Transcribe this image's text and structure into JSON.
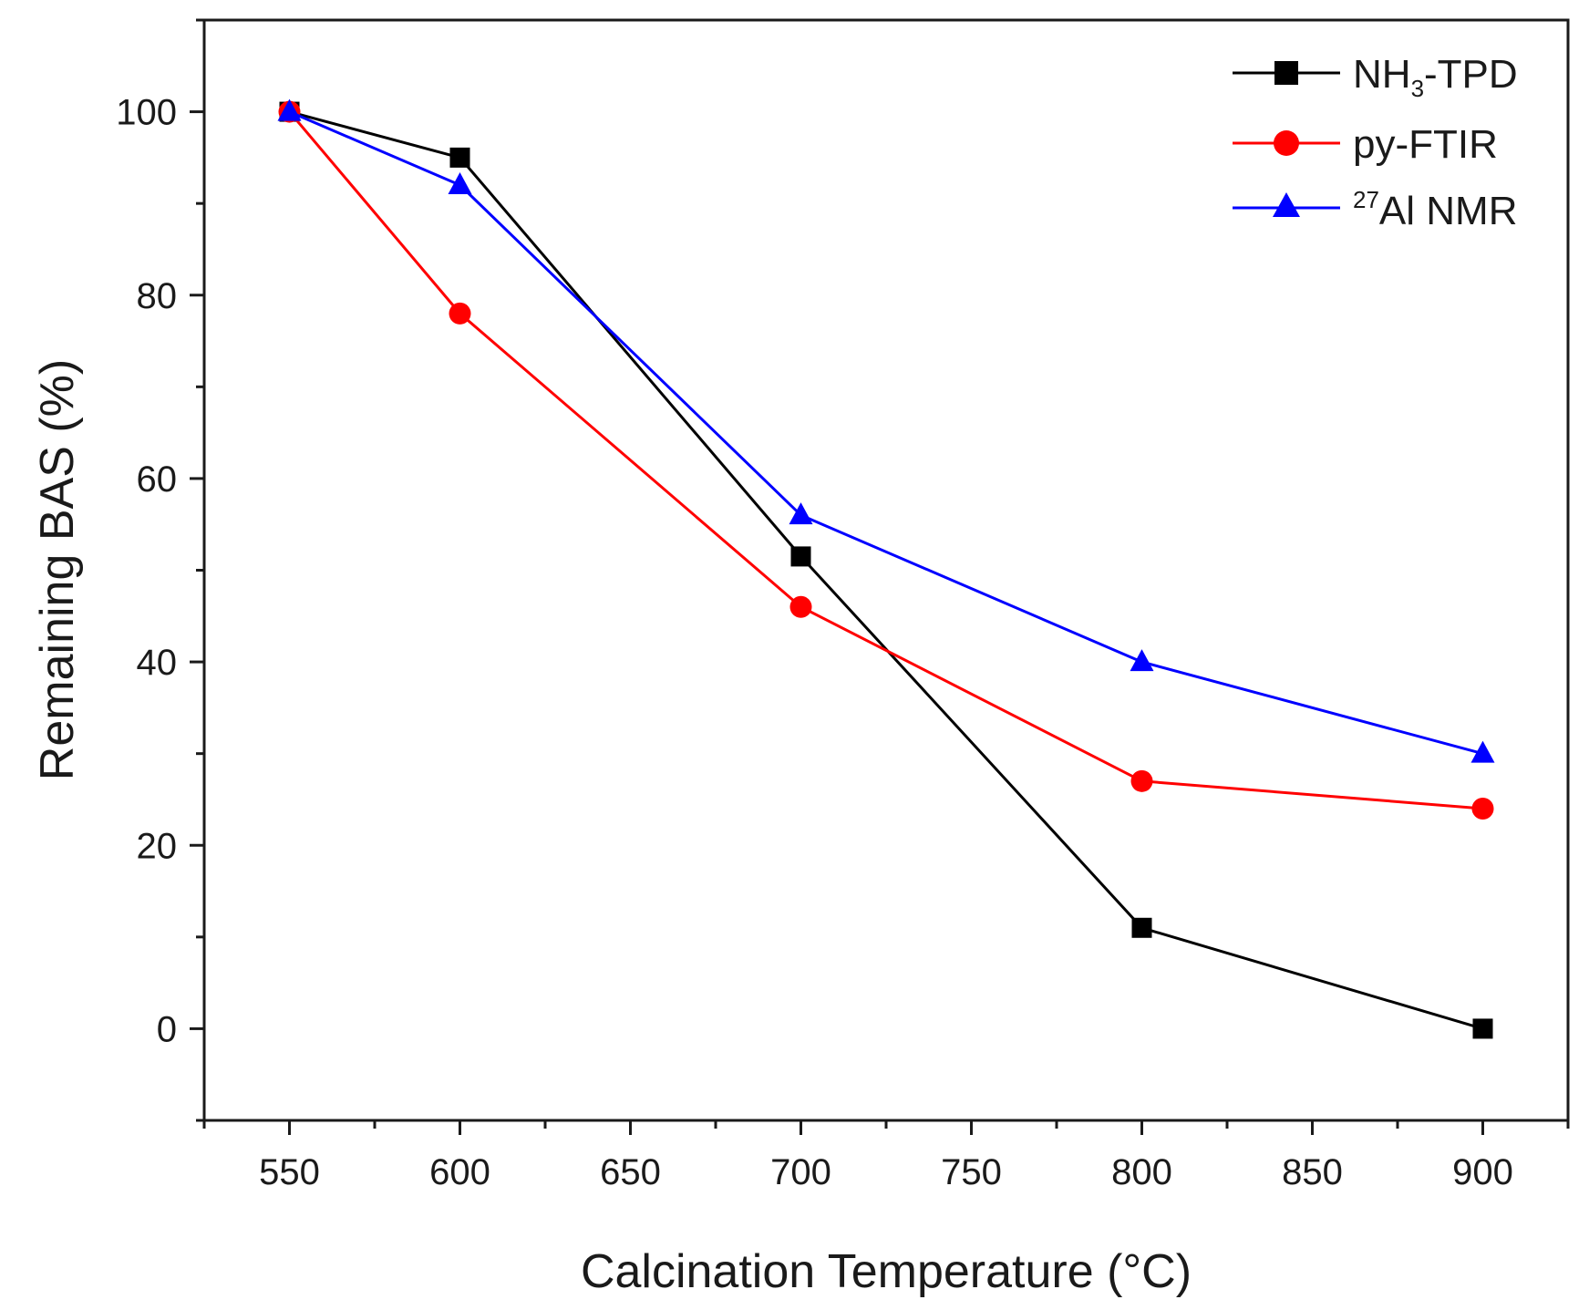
{
  "chart_data": {
    "type": "line",
    "title": "",
    "xlabel": "Calcination Temperature (°C)",
    "ylabel": "Remaining BAS (%)",
    "xlim": [
      525,
      925
    ],
    "ylim": [
      -10,
      110
    ],
    "x_major_ticks": [
      550,
      600,
      650,
      700,
      750,
      800,
      850,
      900
    ],
    "y_major_ticks": [
      0,
      20,
      40,
      60,
      80,
      100
    ],
    "x_tick_labels": [
      "550",
      "600",
      "650",
      "700",
      "750",
      "800",
      "850",
      "900"
    ],
    "y_tick_labels": [
      "0",
      "20",
      "40",
      "60",
      "80",
      "100"
    ],
    "grid": false,
    "legend_position": "top-right",
    "series": [
      {
        "name": "NH3-TPD",
        "legend_main": "NH",
        "legend_sub": "3",
        "legend_rest": "-TPD",
        "color": "#000000",
        "marker": "square",
        "x": [
          550,
          600,
          700,
          800,
          900
        ],
        "values": [
          100,
          95,
          51.5,
          11,
          0
        ]
      },
      {
        "name": "py-FTIR",
        "legend_main": "py-FTIR",
        "color": "#ff0000",
        "marker": "circle",
        "x": [
          550,
          600,
          700,
          800,
          900
        ],
        "values": [
          100,
          78,
          46,
          27,
          24
        ]
      },
      {
        "name": "27Al NMR",
        "legend_sup": "27",
        "legend_main": "Al NMR",
        "color": "#0000ff",
        "marker": "triangle",
        "x": [
          550,
          600,
          700,
          800,
          900
        ],
        "values": [
          100,
          92,
          56,
          40,
          30
        ]
      }
    ]
  }
}
